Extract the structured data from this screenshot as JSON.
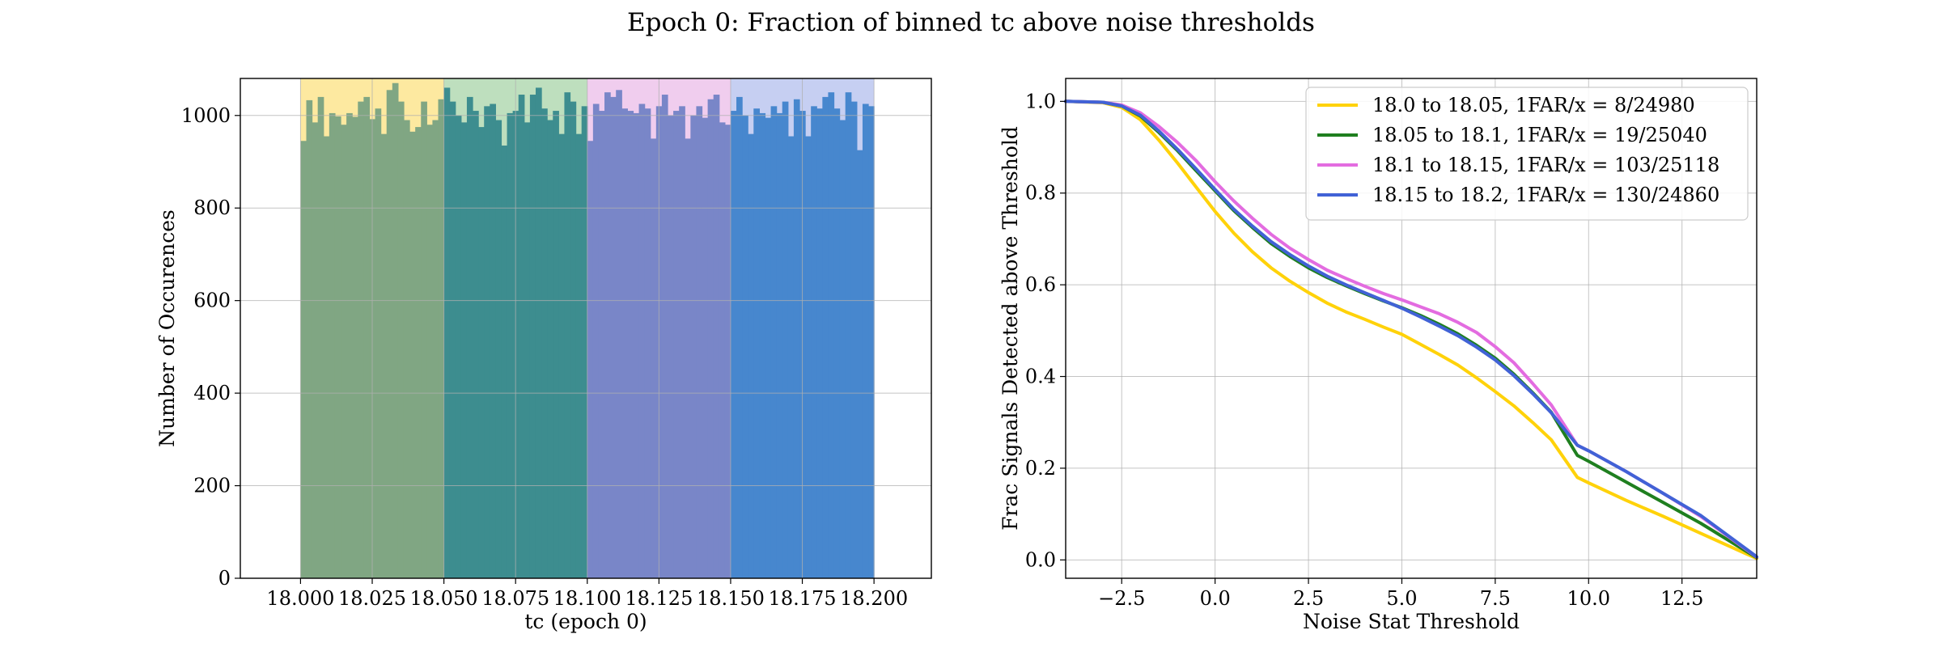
{
  "figure": {
    "title": "Epoch 0: Fraction of binned tc above noise thresholds"
  },
  "chart_data": [
    {
      "type": "bar",
      "subtype": "histogram",
      "xlabel": "tc (epoch 0)",
      "ylabel": "Number of Occurences",
      "xlim": [
        17.979,
        18.22
      ],
      "ylim": [
        0,
        1080
      ],
      "xticks": [
        18.0,
        18.025,
        18.05,
        18.075,
        18.1,
        18.125,
        18.15,
        18.175,
        18.2
      ],
      "xtick_labels": [
        "18.000",
        "18.025",
        "18.050",
        "18.075",
        "18.100",
        "18.125",
        "18.150",
        "18.175",
        "18.200"
      ],
      "yticks": [
        0,
        200,
        400,
        600,
        800,
        1000
      ],
      "ytick_labels": [
        "0",
        "200",
        "400",
        "600",
        "800",
        "1000"
      ],
      "grid": true,
      "shaded_bands": [
        {
          "from": 18.0,
          "to": 18.05,
          "color": "#fde9a0"
        },
        {
          "from": 18.05,
          "to": 18.1,
          "color": "#bedfbe"
        },
        {
          "from": 18.1,
          "to": 18.15,
          "color": "#f0cdee"
        },
        {
          "from": 18.15,
          "to": 18.2,
          "color": "#c6cff2"
        }
      ],
      "series": [
        {
          "range": [
            18.0,
            18.05
          ],
          "color": "#80a683",
          "values": [
            945,
            1033,
            985,
            1040,
            955,
            1005,
            998,
            980,
            1005,
            997,
            1030,
            1040,
            992,
            1015,
            960,
            1055,
            1070,
            1030,
            990,
            965,
            975,
            1030,
            980,
            990,
            1035
          ]
        },
        {
          "range": [
            18.05,
            18.1
          ],
          "color": "#3d8d8f",
          "values": [
            1060,
            1030,
            1000,
            985,
            1040,
            1010,
            975,
            1020,
            1025,
            990,
            935,
            1005,
            1010,
            1045,
            985,
            1045,
            1060,
            1015,
            990,
            1010,
            960,
            1050,
            1030,
            960,
            1020
          ]
        },
        {
          "range": [
            18.1,
            18.15
          ],
          "color": "#7986c8",
          "values": [
            945,
            1025,
            1010,
            1050,
            1040,
            1055,
            1015,
            1010,
            1005,
            1025,
            1015,
            950,
            1020,
            1045,
            1000,
            1010,
            1020,
            950,
            1000,
            1020,
            995,
            1035,
            1045,
            985,
            980
          ]
        },
        {
          "range": [
            18.15,
            18.2
          ],
          "color": "#4787ce",
          "values": [
            1010,
            1040,
            1000,
            960,
            1015,
            1005,
            995,
            1020,
            1005,
            1030,
            955,
            1035,
            1010,
            955,
            1020,
            1015,
            1040,
            1050,
            1015,
            990,
            1050,
            1030,
            925,
            1025,
            1020
          ]
        }
      ]
    },
    {
      "type": "line",
      "xlabel": "Noise Stat Threshold",
      "ylabel": "Frac Signals Detected above Threshold",
      "xlim": [
        -4.0,
        14.5
      ],
      "ylim": [
        -0.04,
        1.05
      ],
      "xticks": [
        -2.5,
        0.0,
        2.5,
        5.0,
        7.5,
        10.0,
        12.5
      ],
      "xtick_labels": [
        "−2.5",
        "0.0",
        "2.5",
        "5.0",
        "7.5",
        "10.0",
        "12.5"
      ],
      "yticks": [
        0.0,
        0.2,
        0.4,
        0.6,
        0.8,
        1.0
      ],
      "ytick_labels": [
        "0.0",
        "0.2",
        "0.4",
        "0.6",
        "0.8",
        "1.0"
      ],
      "grid": true,
      "legend": "top-right",
      "series": [
        {
          "name": "18.0 to 18.05, 1FAR/x = 8/24980",
          "color": "#ffd20a",
          "x": [
            -4.0,
            -3.0,
            -2.5,
            -2.0,
            -1.5,
            -1.0,
            -0.5,
            0.0,
            0.5,
            1.0,
            1.5,
            2.0,
            2.5,
            3.0,
            3.5,
            4.0,
            4.5,
            5.0,
            5.5,
            6.0,
            6.5,
            7.0,
            7.5,
            8.0,
            8.5,
            9.0,
            9.7,
            10.0,
            11.0,
            12.0,
            13.0,
            14.5
          ],
          "y": [
            1.0,
            0.997,
            0.987,
            0.96,
            0.915,
            0.865,
            0.812,
            0.76,
            0.713,
            0.672,
            0.637,
            0.608,
            0.583,
            0.56,
            0.541,
            0.525,
            0.508,
            0.492,
            0.47,
            0.448,
            0.425,
            0.397,
            0.367,
            0.336,
            0.3,
            0.262,
            0.18,
            0.168,
            0.13,
            0.095,
            0.058,
            0.003
          ]
        },
        {
          "name": "18.05 to 18.1, 1FAR/x = 19/25040",
          "color": "#1f7f1f",
          "x": [
            -4.0,
            -3.0,
            -2.5,
            -2.0,
            -1.5,
            -1.0,
            -0.5,
            0.0,
            0.5,
            1.0,
            1.5,
            2.0,
            2.5,
            3.0,
            3.5,
            4.0,
            4.5,
            5.0,
            5.5,
            6.0,
            6.5,
            7.0,
            7.5,
            8.0,
            8.5,
            9.0,
            9.7,
            10.0,
            11.0,
            12.0,
            13.0,
            14.5
          ],
          "y": [
            1.0,
            0.998,
            0.99,
            0.968,
            0.932,
            0.892,
            0.848,
            0.805,
            0.762,
            0.725,
            0.69,
            0.662,
            0.637,
            0.616,
            0.598,
            0.581,
            0.565,
            0.55,
            0.533,
            0.514,
            0.493,
            0.468,
            0.44,
            0.405,
            0.365,
            0.322,
            0.228,
            0.215,
            0.17,
            0.125,
            0.08,
            0.005
          ]
        },
        {
          "name": "18.1 to 18.15, 1FAR/x = 103/25118",
          "color": "#e36ce0",
          "x": [
            -4.0,
            -3.0,
            -2.5,
            -2.0,
            -1.5,
            -1.0,
            -0.5,
            0.0,
            0.5,
            1.0,
            1.5,
            2.0,
            2.5,
            3.0,
            3.5,
            4.0,
            4.5,
            5.0,
            5.5,
            6.0,
            6.5,
            7.0,
            7.5,
            8.0,
            8.5,
            9.0,
            9.7,
            10.0,
            11.0,
            12.0,
            13.0,
            14.5
          ],
          "y": [
            1.0,
            0.998,
            0.992,
            0.975,
            0.945,
            0.91,
            0.87,
            0.825,
            0.783,
            0.745,
            0.71,
            0.68,
            0.655,
            0.632,
            0.614,
            0.597,
            0.581,
            0.567,
            0.552,
            0.537,
            0.518,
            0.496,
            0.465,
            0.43,
            0.385,
            0.338,
            0.25,
            0.238,
            0.193,
            0.145,
            0.095,
            0.006
          ]
        },
        {
          "name": "18.15 to 18.2, 1FAR/x = 130/24860",
          "color": "#4162d6",
          "x": [
            -4.0,
            -3.0,
            -2.5,
            -2.0,
            -1.5,
            -1.0,
            -0.5,
            0.0,
            0.5,
            1.0,
            1.5,
            2.0,
            2.5,
            3.0,
            3.5,
            4.0,
            4.5,
            5.0,
            5.5,
            6.0,
            6.5,
            7.0,
            7.5,
            8.0,
            8.5,
            9.0,
            9.7,
            10.0,
            11.0,
            12.0,
            13.0,
            14.5
          ],
          "y": [
            1.0,
            0.998,
            0.99,
            0.97,
            0.935,
            0.895,
            0.852,
            0.808,
            0.765,
            0.728,
            0.694,
            0.666,
            0.641,
            0.619,
            0.6,
            0.583,
            0.566,
            0.549,
            0.53,
            0.51,
            0.489,
            0.464,
            0.436,
            0.402,
            0.363,
            0.321,
            0.25,
            0.238,
            0.193,
            0.145,
            0.097,
            0.007
          ]
        }
      ]
    }
  ]
}
